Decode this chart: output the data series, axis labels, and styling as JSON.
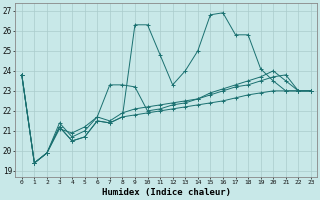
{
  "xlabel": "Humidex (Indice chaleur)",
  "bg_color": "#c8e8e8",
  "grid_color": "#aacccc",
  "line_color": "#1a7070",
  "xlim": [
    -0.5,
    23.5
  ],
  "ylim": [
    18.7,
    27.4
  ],
  "xticks": [
    0,
    1,
    2,
    3,
    4,
    5,
    6,
    7,
    8,
    9,
    10,
    11,
    12,
    13,
    14,
    15,
    16,
    17,
    18,
    19,
    20,
    21,
    22,
    23
  ],
  "yticks": [
    19,
    20,
    21,
    22,
    23,
    24,
    25,
    26,
    27
  ],
  "lines": [
    [
      23.8,
      19.4,
      19.9,
      21.2,
      20.5,
      20.7,
      21.5,
      21.4,
      21.7,
      26.3,
      26.3,
      24.8,
      23.3,
      24.0,
      25.0,
      26.8,
      26.9,
      25.8,
      25.8,
      24.1,
      23.5,
      23.0,
      23.0,
      23.0
    ],
    [
      23.8,
      19.4,
      19.9,
      21.2,
      20.5,
      20.7,
      21.5,
      21.4,
      21.7,
      21.8,
      21.9,
      22.0,
      22.1,
      22.2,
      22.3,
      22.4,
      22.5,
      22.65,
      22.8,
      22.9,
      23.0,
      23.0,
      23.0,
      23.0
    ],
    [
      23.8,
      19.4,
      19.9,
      21.4,
      20.7,
      21.0,
      21.7,
      21.5,
      21.9,
      22.1,
      22.2,
      22.3,
      22.4,
      22.5,
      22.6,
      22.8,
      23.0,
      23.2,
      23.3,
      23.5,
      23.7,
      23.8,
      23.0,
      23.0
    ],
    [
      23.8,
      19.4,
      19.9,
      21.1,
      20.9,
      21.2,
      21.7,
      23.3,
      23.3,
      23.2,
      22.0,
      22.1,
      22.3,
      22.4,
      22.6,
      22.9,
      23.1,
      23.3,
      23.5,
      23.7,
      24.0,
      23.5,
      23.0,
      23.0
    ]
  ]
}
